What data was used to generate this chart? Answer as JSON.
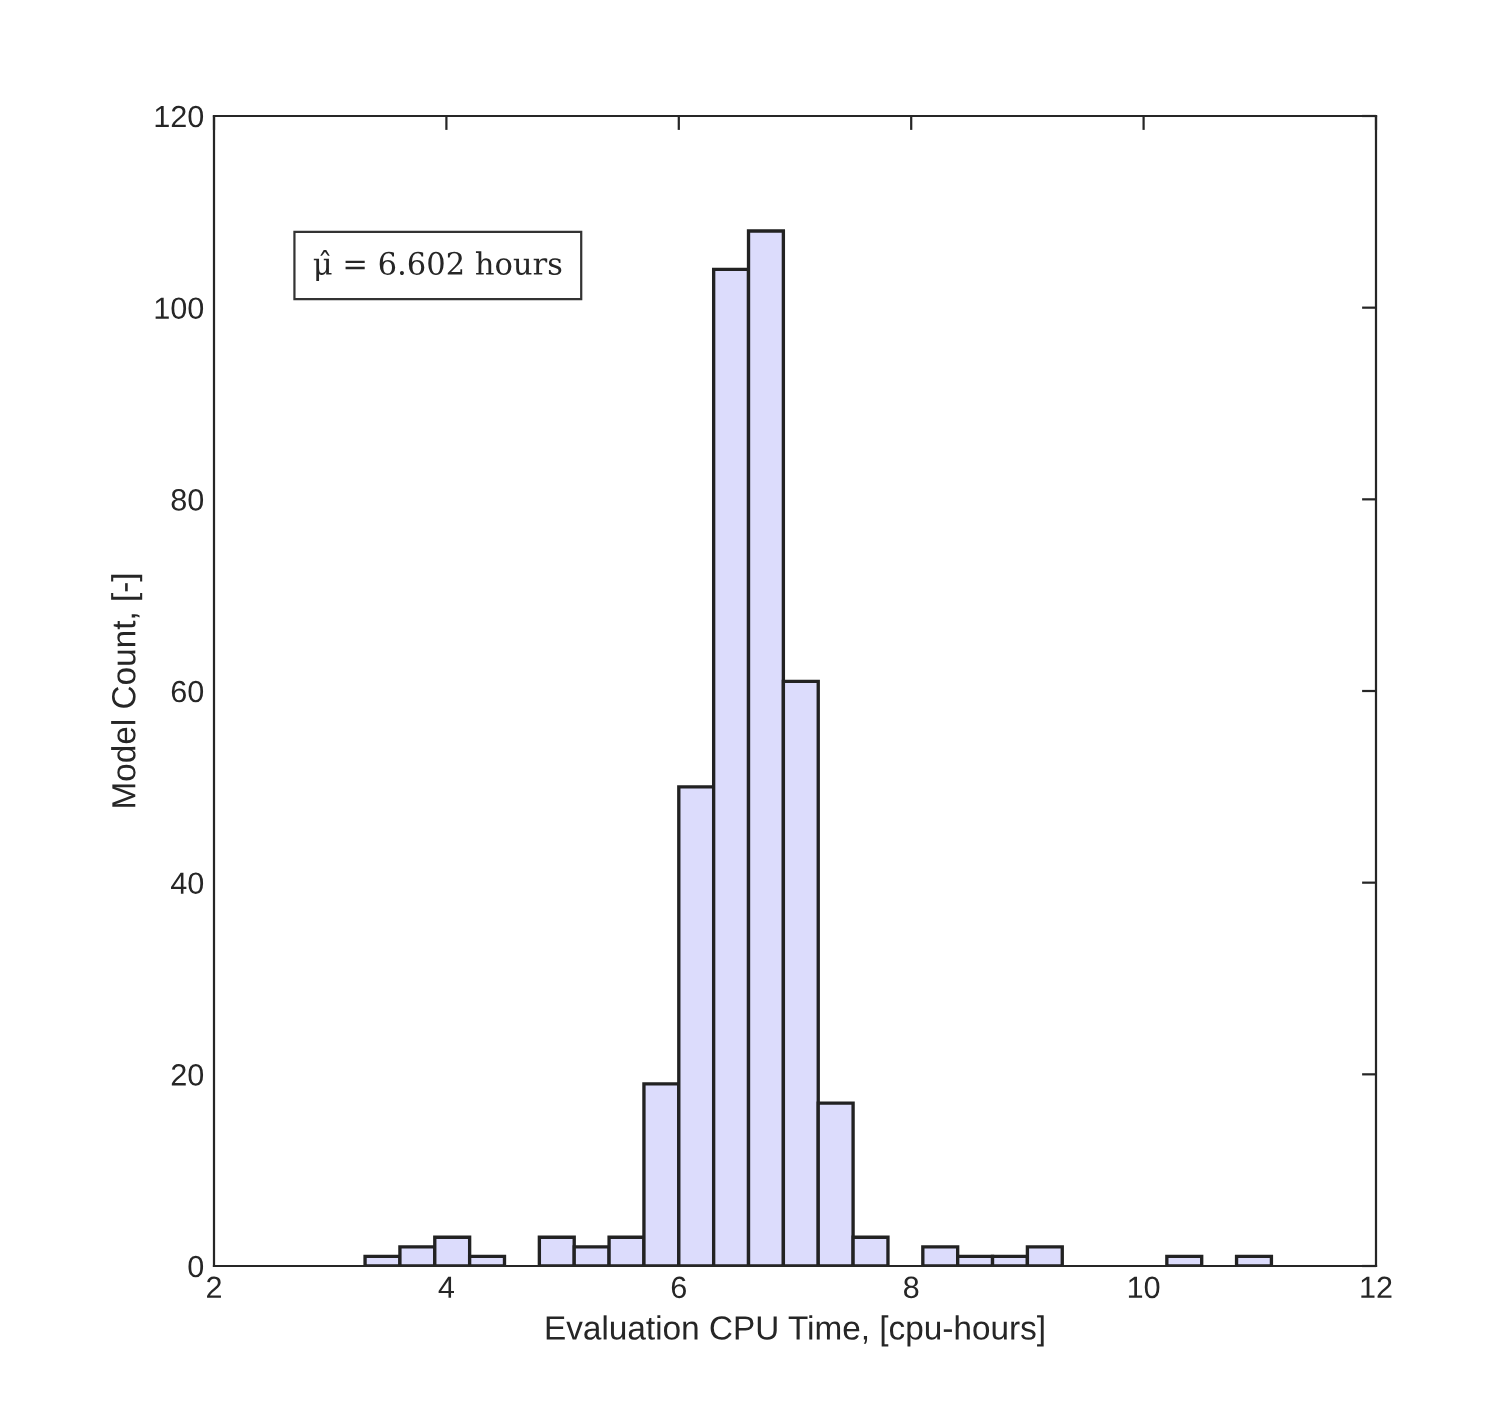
{
  "chart_data": {
    "type": "histogram",
    "xlabel": "Evaluation CPU Time, [cpu-hours]",
    "ylabel": "Model Count, [-]",
    "bins": [
      3.3,
      3.6,
      3.9,
      4.2,
      4.5,
      4.8,
      5.1,
      5.4,
      5.7,
      6.0,
      6.3,
      6.6,
      6.9,
      7.2,
      7.5,
      7.8,
      8.1,
      8.4,
      8.7,
      9.0,
      9.3,
      9.6,
      9.9,
      10.2,
      10.5,
      10.8,
      11.1
    ],
    "values": [
      1,
      2,
      3,
      1,
      0,
      3,
      2,
      3,
      19,
      50,
      104,
      108,
      61,
      17,
      3,
      0,
      2,
      1,
      1,
      2,
      0,
      0,
      0,
      1,
      0,
      1
    ],
    "color": "#dcdcfc",
    "xlim": [
      2,
      12
    ],
    "ylim": [
      0,
      120
    ],
    "xticks": [
      2,
      4,
      6,
      8,
      10,
      12
    ],
    "yticks": [
      0,
      20,
      40,
      60,
      80,
      100,
      120
    ],
    "annotations": [
      "μ̂ = 6.602 hours"
    ],
    "grid": false
  }
}
